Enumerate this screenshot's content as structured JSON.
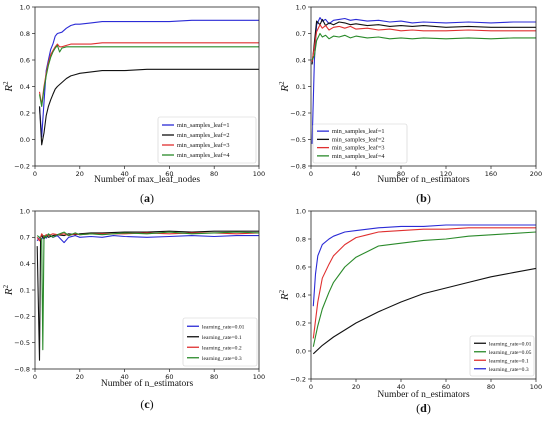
{
  "chart_data": [
    {
      "panel_label": "a",
      "type": "line",
      "xlabel": "Number of max_leaf_nodes",
      "ylabel": "R",
      "ylabel_sup": "2",
      "xlim": [
        0,
        100
      ],
      "ylim": [
        -0.2,
        1.0
      ],
      "xticks": [
        0,
        20,
        40,
        60,
        80,
        100
      ],
      "yticks": [
        -0.2,
        0.0,
        0.2,
        0.4,
        0.6,
        0.8,
        1.0
      ],
      "ytick_labels": [
        "−0.2",
        "0.0",
        "0.2",
        "0.4",
        "0.6",
        "0.8",
        "1.0"
      ],
      "legend_position": "lower-right",
      "series": [
        {
          "name": "min_samples_leaf=1",
          "color": "#2b2bd6",
          "x": [
            2,
            3,
            4,
            5,
            6,
            7,
            8,
            9,
            10,
            12,
            14,
            16,
            18,
            20,
            25,
            30,
            40,
            50,
            60,
            70,
            80,
            90,
            100
          ],
          "y": [
            0.25,
            0.02,
            0.28,
            0.52,
            0.6,
            0.68,
            0.72,
            0.78,
            0.8,
            0.81,
            0.84,
            0.86,
            0.87,
            0.87,
            0.88,
            0.89,
            0.89,
            0.89,
            0.89,
            0.9,
            0.9,
            0.9,
            0.9
          ]
        },
        {
          "name": "min_samples_leaf=2",
          "color": "#111111",
          "x": [
            2,
            3,
            4,
            5,
            6,
            7,
            8,
            9,
            10,
            12,
            14,
            16,
            18,
            20,
            25,
            30,
            40,
            50,
            60,
            70,
            80,
            90,
            100
          ],
          "y": [
            0.25,
            -0.04,
            0.05,
            0.18,
            0.25,
            0.3,
            0.34,
            0.38,
            0.4,
            0.43,
            0.46,
            0.48,
            0.49,
            0.5,
            0.51,
            0.52,
            0.52,
            0.53,
            0.53,
            0.53,
            0.53,
            0.53,
            0.53
          ]
        },
        {
          "name": "min_samples_leaf=3",
          "color": "#e03030",
          "x": [
            2,
            3,
            4,
            5,
            6,
            7,
            8,
            9,
            10,
            11,
            12,
            14,
            16,
            18,
            20,
            25,
            30,
            40,
            50,
            60,
            70,
            80,
            90,
            100
          ],
          "y": [
            0.36,
            0.26,
            0.4,
            0.5,
            0.58,
            0.64,
            0.67,
            0.7,
            0.72,
            0.7,
            0.7,
            0.71,
            0.72,
            0.72,
            0.72,
            0.72,
            0.73,
            0.73,
            0.73,
            0.73,
            0.73,
            0.73,
            0.73,
            0.73
          ]
        },
        {
          "name": "min_samples_leaf=4",
          "color": "#2a8a2a",
          "x": [
            2,
            3,
            4,
            5,
            6,
            7,
            8,
            9,
            10,
            11,
            12,
            14,
            16,
            18,
            20,
            25,
            30,
            40,
            50,
            60,
            70,
            80,
            90,
            100
          ],
          "y": [
            0.34,
            0.25,
            0.38,
            0.48,
            0.56,
            0.62,
            0.66,
            0.69,
            0.71,
            0.66,
            0.69,
            0.7,
            0.7,
            0.7,
            0.7,
            0.7,
            0.7,
            0.7,
            0.7,
            0.7,
            0.7,
            0.7,
            0.7,
            0.7
          ]
        }
      ]
    },
    {
      "panel_label": "b",
      "type": "line",
      "xlabel": "Number of n_estimators",
      "ylabel": "R",
      "ylabel_sup": "2",
      "xlim": [
        0,
        200
      ],
      "ylim": [
        -0.8,
        1.0
      ],
      "xticks": [
        0,
        40,
        80,
        120,
        160,
        200
      ],
      "yticks": [
        -0.8,
        -0.5,
        -0.2,
        0.1,
        0.4,
        0.7,
        1.0
      ],
      "ytick_labels": [
        "−0.8",
        "−0.5",
        "−0.2",
        "0.1",
        "0.4",
        "0.7",
        "1.0"
      ],
      "legend_position": "lower-left",
      "series": [
        {
          "name": "min_samples_leaf=1",
          "color": "#2b2bd6",
          "x": [
            1,
            3,
            5,
            8,
            10,
            13,
            16,
            20,
            25,
            30,
            35,
            40,
            50,
            60,
            70,
            80,
            90,
            100,
            120,
            140,
            160,
            180,
            200
          ],
          "y": [
            -0.55,
            0.4,
            0.8,
            0.88,
            0.84,
            0.86,
            0.81,
            0.85,
            0.86,
            0.87,
            0.85,
            0.86,
            0.84,
            0.85,
            0.83,
            0.84,
            0.82,
            0.83,
            0.82,
            0.83,
            0.82,
            0.83,
            0.83
          ]
        },
        {
          "name": "min_samples_leaf=2",
          "color": "#111111",
          "x": [
            1,
            3,
            5,
            8,
            10,
            13,
            16,
            20,
            25,
            30,
            35,
            40,
            50,
            60,
            70,
            80,
            90,
            100,
            120,
            140,
            160,
            180,
            200
          ],
          "y": [
            0.35,
            0.6,
            0.84,
            0.8,
            0.86,
            0.79,
            0.82,
            0.8,
            0.83,
            0.82,
            0.8,
            0.81,
            0.79,
            0.8,
            0.78,
            0.79,
            0.78,
            0.79,
            0.77,
            0.78,
            0.77,
            0.77,
            0.77
          ]
        },
        {
          "name": "min_samples_leaf=3",
          "color": "#e03030",
          "x": [
            1,
            3,
            5,
            8,
            10,
            13,
            16,
            20,
            25,
            30,
            35,
            40,
            50,
            60,
            70,
            80,
            90,
            100,
            120,
            140,
            160,
            180,
            200
          ],
          "y": [
            0.38,
            0.55,
            0.72,
            0.8,
            0.76,
            0.79,
            0.74,
            0.77,
            0.78,
            0.76,
            0.78,
            0.75,
            0.76,
            0.74,
            0.75,
            0.73,
            0.74,
            0.73,
            0.73,
            0.74,
            0.73,
            0.73,
            0.73
          ]
        },
        {
          "name": "min_samples_leaf=4",
          "color": "#2a8a2a",
          "x": [
            1,
            3,
            5,
            8,
            10,
            13,
            16,
            20,
            25,
            30,
            35,
            40,
            50,
            60,
            70,
            80,
            90,
            100,
            120,
            140,
            160,
            180,
            200
          ],
          "y": [
            0.4,
            0.45,
            0.62,
            0.7,
            0.66,
            0.68,
            0.64,
            0.67,
            0.66,
            0.68,
            0.65,
            0.67,
            0.65,
            0.66,
            0.64,
            0.65,
            0.64,
            0.65,
            0.64,
            0.65,
            0.64,
            0.65,
            0.65
          ]
        }
      ]
    },
    {
      "panel_label": "c",
      "type": "line",
      "xlabel": "Number of n_estimators",
      "ylabel": "R",
      "ylabel_sup": "2",
      "xlim": [
        0,
        100
      ],
      "ylim": [
        -0.8,
        1.0
      ],
      "xticks": [
        0,
        20,
        40,
        60,
        80,
        100
      ],
      "yticks": [
        -0.8,
        -0.5,
        -0.2,
        0.1,
        0.4,
        0.7,
        1.0
      ],
      "ytick_labels": [
        "−0.8",
        "−0.5",
        "−0.2",
        "0.1",
        "0.4",
        "0.7",
        "1.0"
      ],
      "legend_position": "lower-right",
      "series": [
        {
          "name": "learning_rate=0.01",
          "color": "#2b2bd6",
          "x": [
            1,
            2,
            3,
            4,
            5,
            6,
            8,
            10,
            13,
            15,
            18,
            20,
            25,
            30,
            35,
            40,
            50,
            60,
            70,
            80,
            90,
            100
          ],
          "y": [
            0.66,
            0.7,
            0.68,
            0.72,
            0.69,
            0.73,
            0.7,
            0.72,
            0.64,
            0.7,
            0.72,
            0.7,
            0.71,
            0.7,
            0.72,
            0.71,
            0.7,
            0.71,
            0.72,
            0.71,
            0.72,
            0.72
          ]
        },
        {
          "name": "learning_rate=0.1",
          "color": "#111111",
          "x": [
            1,
            2,
            2.5,
            3,
            4,
            5,
            6,
            8,
            10,
            13,
            15,
            18,
            20,
            25,
            30,
            40,
            50,
            60,
            70,
            80,
            90,
            100
          ],
          "y": [
            0.6,
            -0.7,
            0.7,
            0.72,
            0.68,
            0.73,
            0.7,
            0.72,
            0.73,
            0.72,
            0.74,
            0.73,
            0.74,
            0.75,
            0.75,
            0.76,
            0.76,
            0.77,
            0.76,
            0.77,
            0.77,
            0.77
          ]
        },
        {
          "name": "learning_rate=0.2",
          "color": "#e03030",
          "x": [
            1,
            2,
            3,
            4,
            5,
            6,
            8,
            10,
            13,
            15,
            18,
            20,
            25,
            30,
            40,
            50,
            60,
            70,
            80,
            90,
            100
          ],
          "y": [
            0.7,
            0.66,
            0.74,
            0.7,
            0.73,
            0.72,
            0.74,
            0.73,
            0.74,
            0.72,
            0.74,
            0.73,
            0.74,
            0.74,
            0.74,
            0.75,
            0.74,
            0.75,
            0.75,
            0.74,
            0.75
          ]
        },
        {
          "name": "learning_rate=0.3",
          "color": "#2a8a2a",
          "x": [
            1,
            2,
            3,
            3.5,
            4,
            5,
            6,
            8,
            10,
            13,
            15,
            18,
            20,
            25,
            30,
            40,
            50,
            60,
            70,
            80,
            90,
            100
          ],
          "y": [
            0.72,
            0.7,
            0.68,
            -0.58,
            0.72,
            0.7,
            0.74,
            0.7,
            0.73,
            0.76,
            0.72,
            0.75,
            0.73,
            0.74,
            0.73,
            0.75,
            0.74,
            0.76,
            0.74,
            0.75,
            0.76,
            0.75
          ]
        }
      ]
    },
    {
      "panel_label": "d",
      "type": "line",
      "xlabel": "Number of n_estimators",
      "ylabel": "R",
      "ylabel_sup": "2",
      "xlim": [
        0,
        100
      ],
      "ylim": [
        -0.2,
        1.0
      ],
      "xticks": [
        0,
        20,
        40,
        60,
        80,
        100
      ],
      "yticks": [
        -0.2,
        0.0,
        0.2,
        0.4,
        0.6,
        0.8,
        1.0
      ],
      "ytick_labels": [
        "−0.2",
        "0.0",
        "0.2",
        "0.4",
        "0.6",
        "0.8",
        "1.0"
      ],
      "legend_position": "lower-right",
      "series": [
        {
          "name": "learning_rate=0.01",
          "color": "#111111",
          "x": [
            1,
            5,
            10,
            15,
            20,
            25,
            30,
            40,
            50,
            60,
            70,
            80,
            90,
            100
          ],
          "y": [
            -0.02,
            0.04,
            0.1,
            0.15,
            0.2,
            0.24,
            0.28,
            0.35,
            0.41,
            0.45,
            0.49,
            0.53,
            0.56,
            0.59
          ]
        },
        {
          "name": "learning_rate=0.05",
          "color": "#2a8a2a",
          "x": [
            1,
            3,
            5,
            8,
            10,
            15,
            20,
            25,
            30,
            40,
            50,
            60,
            70,
            80,
            90,
            100
          ],
          "y": [
            0.03,
            0.18,
            0.3,
            0.42,
            0.49,
            0.6,
            0.67,
            0.71,
            0.75,
            0.77,
            0.79,
            0.8,
            0.82,
            0.83,
            0.84,
            0.85
          ]
        },
        {
          "name": "learning_rate=0.1",
          "color": "#e03030",
          "x": [
            1,
            3,
            5,
            8,
            10,
            15,
            20,
            25,
            30,
            40,
            50,
            60,
            70,
            80,
            90,
            100
          ],
          "y": [
            0.09,
            0.35,
            0.52,
            0.62,
            0.68,
            0.76,
            0.81,
            0.83,
            0.85,
            0.86,
            0.87,
            0.87,
            0.88,
            0.88,
            0.88,
            0.88
          ]
        },
        {
          "name": "learning_rate=0.3",
          "color": "#2b2bd6",
          "x": [
            1,
            2,
            3,
            5,
            8,
            10,
            15,
            20,
            25,
            30,
            40,
            50,
            60,
            70,
            80,
            90,
            100
          ],
          "y": [
            0.32,
            0.55,
            0.68,
            0.76,
            0.8,
            0.82,
            0.85,
            0.86,
            0.87,
            0.88,
            0.89,
            0.89,
            0.9,
            0.9,
            0.9,
            0.9,
            0.9
          ]
        }
      ]
    }
  ]
}
